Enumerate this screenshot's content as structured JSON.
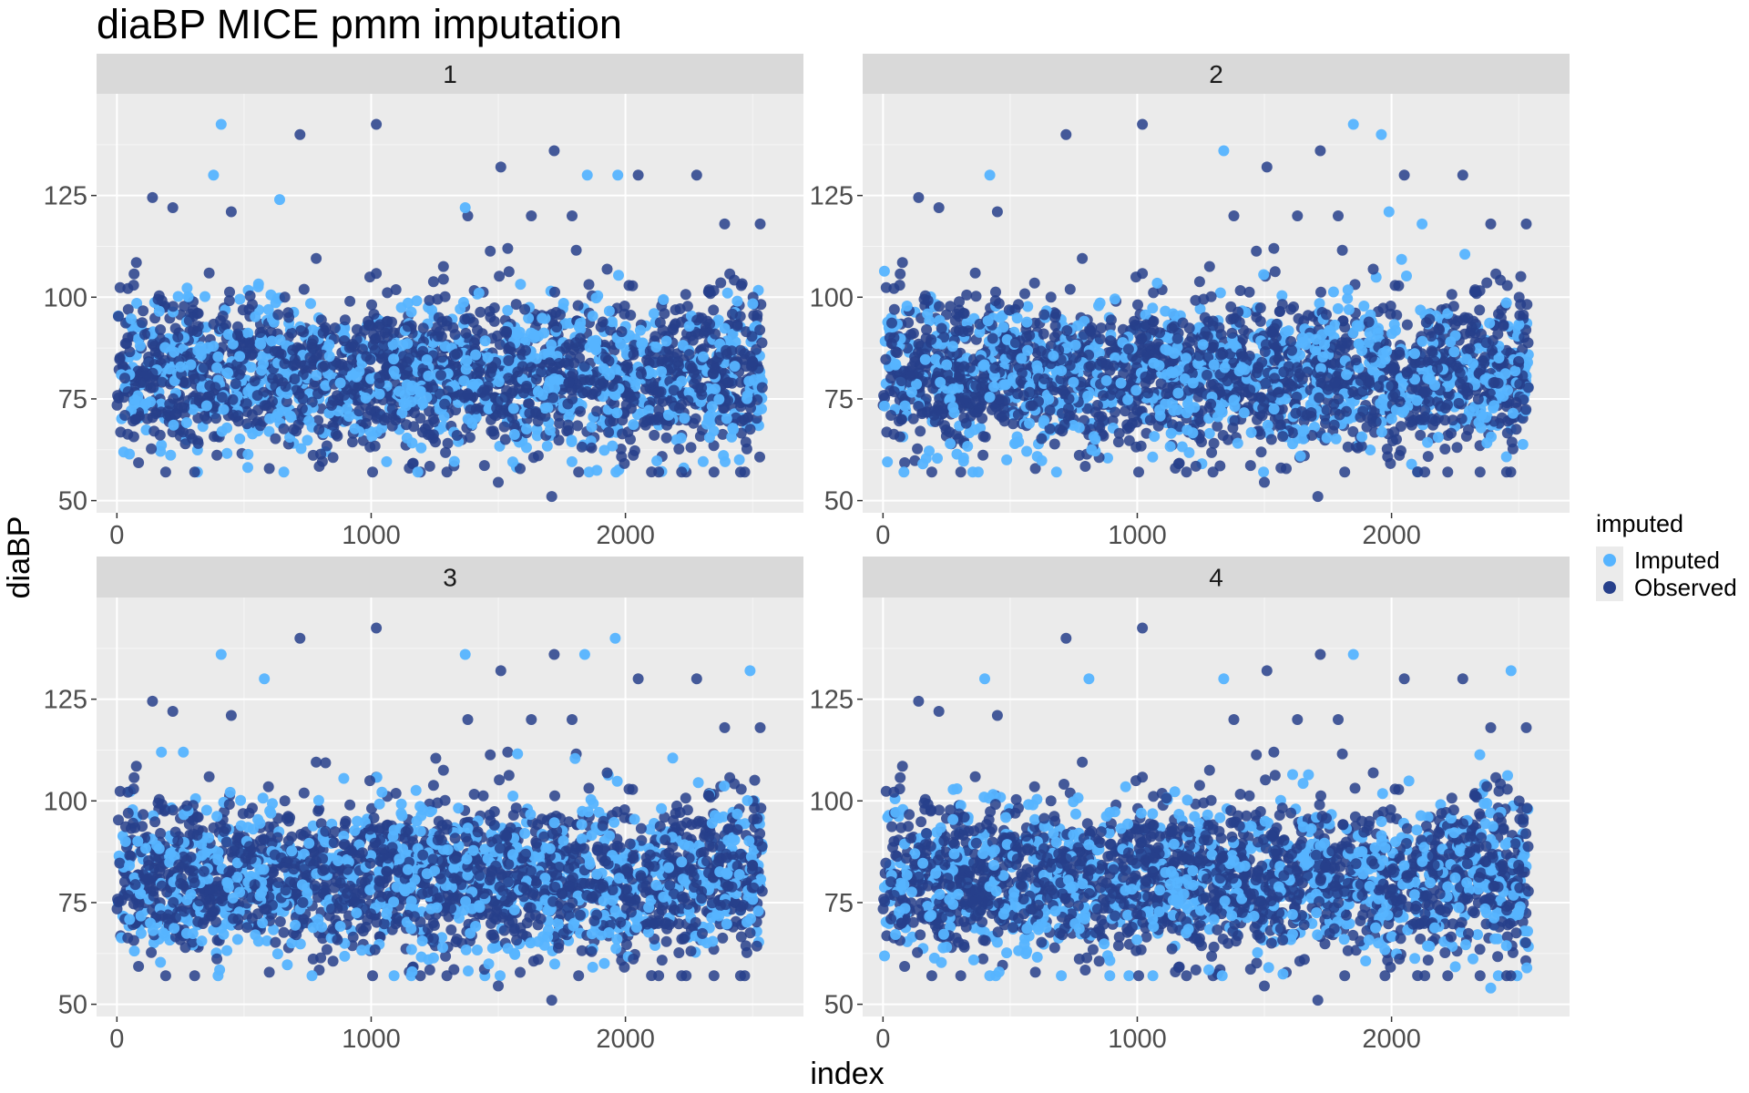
{
  "chart_data": {
    "type": "scatter",
    "title": "diaBP MICE pmm imputation",
    "xlabel": "index",
    "ylabel": "diaBP",
    "xlim": [
      -80,
      2700
    ],
    "ylim": [
      47,
      150
    ],
    "x_ticks": [
      0,
      1000,
      2000
    ],
    "x_tick_labels": [
      "0",
      "1000",
      "2000"
    ],
    "y_ticks": [
      50,
      75,
      100,
      125
    ],
    "y_tick_labels": [
      "50",
      "75",
      "100",
      "125"
    ],
    "grid": true,
    "legend": {
      "title": "imputed",
      "position": "right",
      "entries": [
        {
          "name": "Imputed",
          "color": "#56B4FF"
        },
        {
          "name": "Observed",
          "color": "#27408B"
        }
      ]
    },
    "facet_labels": [
      "1",
      "2",
      "3",
      "4"
    ],
    "point_count_per_facet": 2540,
    "typical_range": [
      60,
      100
    ],
    "distribution": "points spread uniformly over index 0–2540; diaBP concentrated between 65 and 95 with center near 80",
    "series": [
      {
        "name": "Observed",
        "color": "#27408B",
        "notable_points": [
          {
            "x": 720,
            "y": 140
          },
          {
            "x": 1020,
            "y": 142.5
          },
          {
            "x": 1720,
            "y": 136
          },
          {
            "x": 1710,
            "y": 51
          },
          {
            "x": 1500,
            "y": 54.5
          },
          {
            "x": 1510,
            "y": 132
          },
          {
            "x": 2050,
            "y": 130
          },
          {
            "x": 2280,
            "y": 130
          },
          {
            "x": 140,
            "y": 124.5
          },
          {
            "x": 220,
            "y": 122
          },
          {
            "x": 450,
            "y": 121
          },
          {
            "x": 1380,
            "y": 120
          },
          {
            "x": 1630,
            "y": 120
          },
          {
            "x": 1790,
            "y": 120
          },
          {
            "x": 2390,
            "y": 118
          },
          {
            "x": 2530,
            "y": 118
          }
        ]
      },
      {
        "name": "Imputed",
        "color": "#56B4FF",
        "facet_notable_points": [
          [
            {
              "x": 410,
              "y": 142.5
            },
            {
              "x": 380,
              "y": 130
            },
            {
              "x": 640,
              "y": 124
            },
            {
              "x": 1850,
              "y": 130
            },
            {
              "x": 1970,
              "y": 130
            },
            {
              "x": 1370,
              "y": 122
            }
          ],
          [
            {
              "x": 1850,
              "y": 142.5
            },
            {
              "x": 1960,
              "y": 140
            },
            {
              "x": 1340,
              "y": 136
            },
            {
              "x": 420,
              "y": 130
            },
            {
              "x": 1990,
              "y": 121
            },
            {
              "x": 2120,
              "y": 118
            }
          ],
          [
            {
              "x": 410,
              "y": 136
            },
            {
              "x": 1370,
              "y": 136
            },
            {
              "x": 1840,
              "y": 136
            },
            {
              "x": 1960,
              "y": 140
            },
            {
              "x": 2490,
              "y": 132
            },
            {
              "x": 580,
              "y": 130
            }
          ],
          [
            {
              "x": 400,
              "y": 130
            },
            {
              "x": 1340,
              "y": 130
            },
            {
              "x": 1850,
              "y": 136
            },
            {
              "x": 2470,
              "y": 132
            },
            {
              "x": 810,
              "y": 130
            },
            {
              "x": 2390,
              "y": 54
            }
          ]
        ]
      }
    ]
  }
}
